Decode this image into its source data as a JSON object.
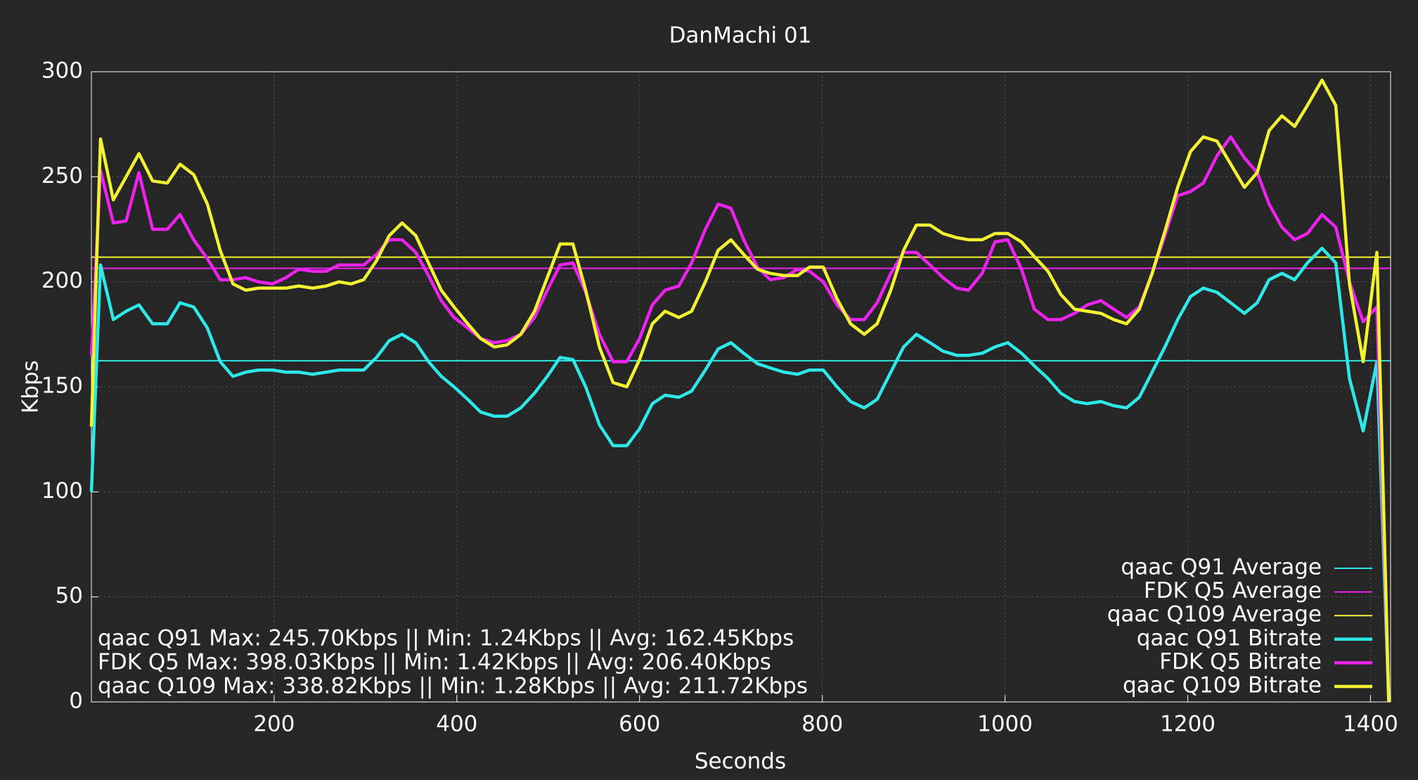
{
  "chart_data": {
    "type": "line",
    "title": "DanMachi 01",
    "xlabel": "Seconds",
    "ylabel": "Kbps",
    "xlim": [
      0,
      1422
    ],
    "xticks": [
      200,
      400,
      600,
      800,
      1000,
      1200,
      1400
    ],
    "ylim": [
      0,
      300
    ],
    "yticks": [
      0,
      50,
      100,
      150,
      200,
      250,
      300
    ],
    "grid": true,
    "legend": "lower right",
    "x": [
      0,
      10,
      24,
      38,
      52,
      67,
      83,
      97,
      112,
      127,
      141,
      155,
      169,
      183,
      198,
      213,
      227,
      242,
      257,
      271,
      284,
      298,
      312,
      326,
      340,
      355,
      369,
      383,
      397,
      412,
      426,
      441,
      455,
      470,
      485,
      499,
      513,
      527,
      541,
      556,
      571,
      586,
      600,
      614,
      628,
      643,
      657,
      672,
      686,
      700,
      714,
      729,
      743,
      758,
      773,
      786,
      801,
      816,
      831,
      846,
      860,
      875,
      889,
      903,
      918,
      932,
      947,
      960,
      975,
      989,
      1003,
      1018,
      1032,
      1047,
      1061,
      1076,
      1090,
      1105,
      1119,
      1133,
      1147,
      1161,
      1175,
      1189,
      1203,
      1217,
      1232,
      1247,
      1262,
      1276,
      1289,
      1303,
      1317,
      1331,
      1347,
      1362,
      1377,
      1392,
      1407,
      1420
    ],
    "averages": [
      {
        "name": "qaac Q91 Average",
        "color": "#2ee8e8",
        "value": 162.45
      },
      {
        "name": "FDK Q5 Average",
        "color": "#ee22ee",
        "value": 206.4
      },
      {
        "name": "qaac Q109 Average",
        "color": "#f2f233",
        "value": 211.72
      }
    ],
    "series": [
      {
        "name": "qaac Q91 Bitrate",
        "color": "#2ee8e8",
        "values": [
          100,
          208,
          182,
          186,
          189,
          180,
          180,
          190,
          188,
          178,
          162,
          155,
          157,
          158,
          158,
          157,
          157,
          156,
          157,
          158,
          158,
          158,
          164,
          172,
          175,
          171,
          162,
          155,
          150,
          144,
          138,
          136,
          136,
          140,
          147,
          155,
          164,
          163,
          150,
          132,
          122,
          122,
          130,
          142,
          146,
          145,
          148,
          158,
          168,
          171,
          166,
          161,
          159,
          157,
          156,
          158,
          158,
          150,
          143,
          140,
          144,
          157,
          169,
          175,
          171,
          167,
          165,
          165,
          166,
          169,
          171,
          166,
          160,
          154,
          147,
          143,
          142,
          143,
          141,
          140,
          145,
          157,
          169,
          182,
          193,
          197,
          195,
          190,
          185,
          190,
          201,
          204,
          201,
          209,
          216,
          209,
          154,
          129,
          162,
          0
        ]
      },
      {
        "name": "FDK Q5 Bitrate",
        "color": "#ee22ee",
        "values": [
          165,
          253,
          228,
          229,
          252,
          225,
          225,
          232,
          220,
          211,
          201,
          201,
          202,
          200,
          199,
          202,
          206,
          205,
          205,
          208,
          208,
          208,
          213,
          220,
          220,
          214,
          203,
          191,
          183,
          178,
          173,
          171,
          172,
          175,
          183,
          196,
          208,
          209,
          195,
          175,
          162,
          162,
          173,
          189,
          196,
          198,
          209,
          225,
          237,
          235,
          220,
          207,
          201,
          202,
          206,
          205,
          200,
          189,
          182,
          182,
          190,
          204,
          214,
          214,
          208,
          202,
          197,
          196,
          204,
          219,
          220,
          206,
          187,
          182,
          182,
          185,
          189,
          191,
          187,
          183,
          188,
          204,
          222,
          241,
          243,
          247,
          260,
          269,
          259,
          252,
          237,
          226,
          220,
          223,
          232,
          226,
          200,
          181,
          188,
          0
        ]
      },
      {
        "name": "qaac Q109 Bitrate",
        "color": "#f2f233",
        "values": [
          131,
          268,
          239,
          250,
          261,
          248,
          247,
          256,
          251,
          237,
          215,
          199,
          196,
          197,
          197,
          197,
          198,
          197,
          198,
          200,
          199,
          201,
          210,
          222,
          228,
          222,
          209,
          196,
          188,
          180,
          173,
          169,
          170,
          175,
          186,
          202,
          218,
          218,
          196,
          169,
          152,
          150,
          163,
          180,
          186,
          183,
          186,
          200,
          215,
          220,
          213,
          206,
          204,
          203,
          203,
          207,
          207,
          192,
          180,
          175,
          180,
          196,
          215,
          227,
          227,
          223,
          221,
          220,
          220,
          223,
          223,
          219,
          212,
          205,
          194,
          187,
          186,
          185,
          182,
          180,
          187,
          204,
          224,
          245,
          262,
          269,
          267,
          256,
          245,
          252,
          272,
          279,
          274,
          284,
          296,
          284,
          199,
          162,
          214,
          0
        ]
      }
    ],
    "stats": [
      "qaac Q91 Max: 245.70Kbps || Min: 1.24Kbps || Avg: 162.45Kbps",
      "FDK Q5 Max: 398.03Kbps || Min: 1.42Kbps || Avg: 206.40Kbps",
      "qaac Q109 Max: 338.82Kbps || Min: 1.28Kbps || Avg: 211.72Kbps"
    ]
  }
}
